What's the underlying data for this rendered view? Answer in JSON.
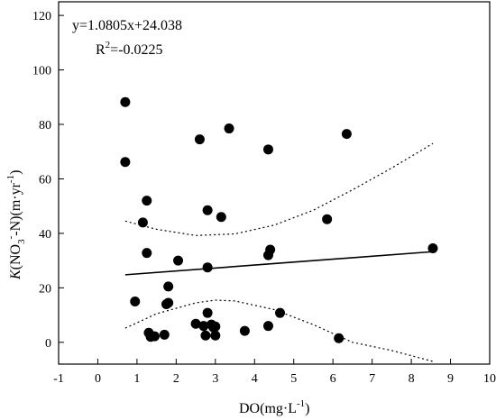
{
  "chart_data": {
    "type": "scatter",
    "xlabel": "DO(mg·L",
    "xlabel_sup": "-1",
    "xlabel_end": ")",
    "ylabel_k": "K",
    "ylabel_a": "(NO",
    "ylabel_sub": "3",
    "ylabel_sup1": "-",
    "ylabel_b": "-N)(m·yr",
    "ylabel_sup2": "-1",
    "ylabel_end": ")",
    "equation": "y=1.0805x+24.038",
    "r2_prefix": "R",
    "r2_sup": "2",
    "r2_value": "=-0.0225",
    "xlim": [
      -1,
      10
    ],
    "ylim": [
      -8,
      125
    ],
    "xticks": [
      -1,
      0,
      1,
      2,
      3,
      4,
      5,
      6,
      7,
      8,
      9,
      10
    ],
    "yticks": [
      0,
      20,
      40,
      60,
      80,
      100,
      120
    ],
    "grid": false,
    "points": [
      {
        "x": 0.7,
        "y": 88.2
      },
      {
        "x": 0.7,
        "y": 66.2
      },
      {
        "x": 0.95,
        "y": 15.0
      },
      {
        "x": 1.15,
        "y": 44.0
      },
      {
        "x": 1.25,
        "y": 52.0
      },
      {
        "x": 1.25,
        "y": 32.8
      },
      {
        "x": 1.3,
        "y": 3.5
      },
      {
        "x": 1.35,
        "y": 2.0
      },
      {
        "x": 1.45,
        "y": 2.2
      },
      {
        "x": 1.7,
        "y": 2.8
      },
      {
        "x": 1.75,
        "y": 14.0
      },
      {
        "x": 1.8,
        "y": 14.5
      },
      {
        "x": 1.8,
        "y": 20.5
      },
      {
        "x": 2.05,
        "y": 30.0
      },
      {
        "x": 2.5,
        "y": 6.8
      },
      {
        "x": 2.6,
        "y": 74.5
      },
      {
        "x": 2.7,
        "y": 6.0
      },
      {
        "x": 2.75,
        "y": 2.5
      },
      {
        "x": 2.8,
        "y": 48.5
      },
      {
        "x": 2.8,
        "y": 27.5
      },
      {
        "x": 2.8,
        "y": 10.8
      },
      {
        "x": 2.9,
        "y": 6.5
      },
      {
        "x": 2.95,
        "y": 5.5
      },
      {
        "x": 3.0,
        "y": 2.5
      },
      {
        "x": 3.0,
        "y": 5.8
      },
      {
        "x": 3.15,
        "y": 46.0
      },
      {
        "x": 3.35,
        "y": 78.5
      },
      {
        "x": 3.75,
        "y": 4.2
      },
      {
        "x": 4.35,
        "y": 70.8
      },
      {
        "x": 4.35,
        "y": 32.0
      },
      {
        "x": 4.4,
        "y": 34.0
      },
      {
        "x": 4.35,
        "y": 6.0
      },
      {
        "x": 4.65,
        "y": 10.8
      },
      {
        "x": 5.85,
        "y": 45.2
      },
      {
        "x": 6.15,
        "y": 1.5
      },
      {
        "x": 6.35,
        "y": 76.5
      },
      {
        "x": 8.55,
        "y": 34.5
      }
    ],
    "fit": {
      "slope": 1.0805,
      "intercept": 24.038,
      "x_range": [
        0.7,
        8.55
      ]
    },
    "confidence_upper": [
      [
        0.7,
        44.5
      ],
      [
        1.5,
        41.5
      ],
      [
        2.5,
        39.2
      ],
      [
        3.5,
        39.8
      ],
      [
        4.5,
        43.0
      ],
      [
        5.5,
        48.5
      ],
      [
        6.5,
        56.0
      ],
      [
        7.5,
        64.0
      ],
      [
        8.55,
        73.0
      ]
    ],
    "confidence_lower": [
      [
        0.7,
        5.2
      ],
      [
        1.5,
        10.5
      ],
      [
        2.5,
        14.5
      ],
      [
        3.0,
        15.5
      ],
      [
        3.5,
        15.2
      ],
      [
        4.5,
        12.0
      ],
      [
        5.5,
        6.5
      ],
      [
        6.5,
        0.0
      ],
      [
        7.5,
        -3.0
      ],
      [
        8.55,
        -7.0
      ]
    ]
  }
}
